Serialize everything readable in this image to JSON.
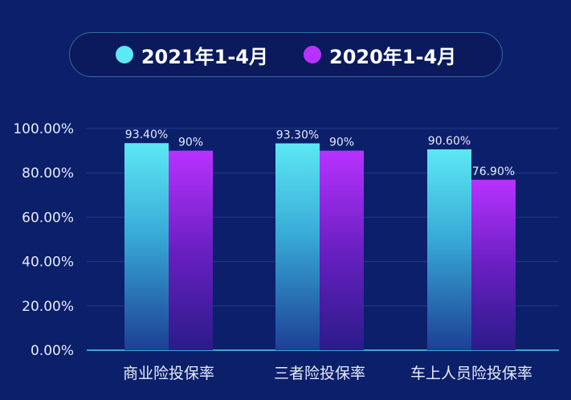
{
  "chart_data": {
    "type": "bar",
    "categories": [
      "商业险投保率",
      "三者险投保率",
      "车上人员险投保率"
    ],
    "series": [
      {
        "name": "2021年1-4月",
        "values": [
          93.4,
          93.3,
          90.6
        ],
        "labels": [
          "93.40%",
          "93.30%",
          "90.60%"
        ],
        "color": "#5ce8f4"
      },
      {
        "name": "2020年1-4月",
        "values": [
          90,
          90,
          76.9
        ],
        "labels": [
          "90%",
          "90%",
          "76.90%"
        ],
        "color": "#b832ff"
      }
    ],
    "y_ticks": [
      "0.00%",
      "20.00%",
      "40.00%",
      "60.00%",
      "80.00%",
      "100.00%"
    ],
    "ylim": [
      0,
      100
    ],
    "grid": true,
    "legend_position": "top"
  },
  "colors": {
    "background": "#0c1f6b",
    "grid": "#1f3a86",
    "axis": "#3fa3c8",
    "text": "#e7ecf8"
  }
}
